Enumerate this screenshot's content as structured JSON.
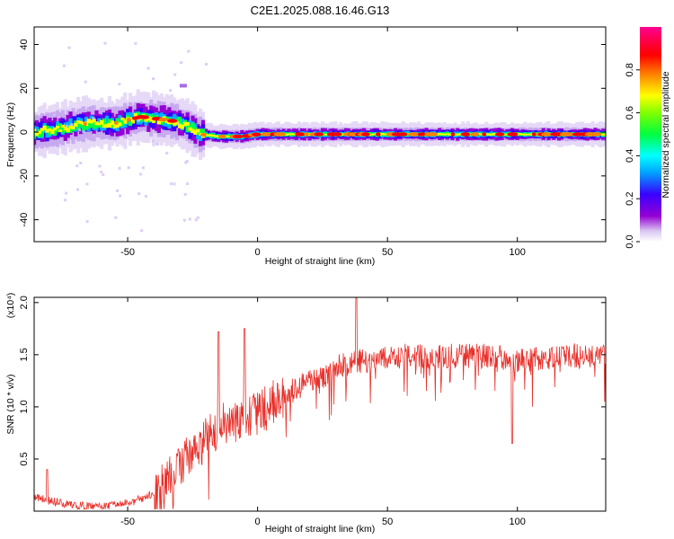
{
  "title": "C2E1.2025.088.16.46.G13",
  "chart_data": [
    {
      "type": "heatmap",
      "xlabel": "Height of straight line (km)",
      "ylabel": "Frequency (Hz)",
      "xlim": [
        -86,
        134
      ],
      "ylim": [
        -50,
        48
      ],
      "x_ticks": [
        -50,
        0,
        50,
        100
      ],
      "y_ticks": [
        -40,
        -20,
        0,
        20,
        40
      ],
      "colorbar": {
        "label": "Normalized spectral amplitude",
        "range": [
          0,
          1
        ],
        "ticks": [
          0.0,
          0.2,
          0.4,
          0.6,
          0.8
        ],
        "tick_labels": [
          "0.0",
          "0.2",
          "0.4",
          "0.6",
          "0.8"
        ],
        "colormap": [
          "#e8d8f8",
          "#9400d3",
          "#3300ff",
          "#00b0ff",
          "#00ffff",
          "#00ff40",
          "#a0ff00",
          "#ffff00",
          "#ff8000",
          "#ff0000",
          "#ff0090"
        ]
      },
      "ridge": {
        "x": [
          -86,
          -75,
          -65,
          -55,
          -45,
          -38,
          -32,
          -27,
          -22,
          -15,
          -5,
          0,
          20,
          50,
          80,
          110,
          134
        ],
        "y": [
          0,
          2,
          4,
          4,
          7,
          6,
          5,
          3,
          -1,
          -2,
          -2,
          -1,
          -1,
          -1,
          -1,
          -1,
          -1
        ]
      },
      "grid": false
    },
    {
      "type": "line",
      "xlabel": "Height of straight line (km)",
      "ylabel": "SNR (10 * v/v)",
      "y_multiplier": "(x10⁴)",
      "xlim": [
        -86,
        134
      ],
      "ylim": [
        0,
        2.05
      ],
      "x_ticks": [
        -50,
        0,
        50,
        100
      ],
      "y_ticks": [
        0.5,
        1.0,
        1.5,
        2.0
      ],
      "y_tick_labels": [
        "0.5",
        "1.0",
        "1.5",
        "2.0"
      ],
      "series": [
        {
          "color": "#e8302a",
          "x": [
            -86,
            -80,
            -75,
            -70,
            -65,
            -60,
            -55,
            -50,
            -45,
            -40,
            -35,
            -30,
            -25,
            -20,
            -15,
            -10,
            -5,
            0,
            5,
            10,
            15,
            20,
            25,
            30,
            35,
            40,
            45,
            50,
            55,
            60,
            70,
            80,
            90,
            100,
            110,
            120,
            130,
            134
          ],
          "y": [
            0.15,
            0.1,
            0.08,
            0.06,
            0.05,
            0.05,
            0.06,
            0.08,
            0.12,
            0.18,
            0.3,
            0.45,
            0.6,
            0.7,
            0.85,
            0.85,
            0.9,
            0.95,
            1.05,
            1.1,
            1.2,
            1.25,
            1.3,
            1.4,
            1.42,
            1.45,
            1.45,
            1.48,
            1.5,
            1.5,
            1.5,
            1.5,
            1.5,
            1.45,
            1.48,
            1.5,
            1.5,
            1.5
          ]
        }
      ],
      "annotations": [
        {
          "x": -81,
          "y": 0.4
        },
        {
          "x": -15,
          "y": 1.72
        },
        {
          "x": -5,
          "y": 1.75
        },
        {
          "x": 38,
          "y": 2.05
        },
        {
          "x": 98,
          "y": 0.65
        }
      ],
      "grid": false
    }
  ]
}
